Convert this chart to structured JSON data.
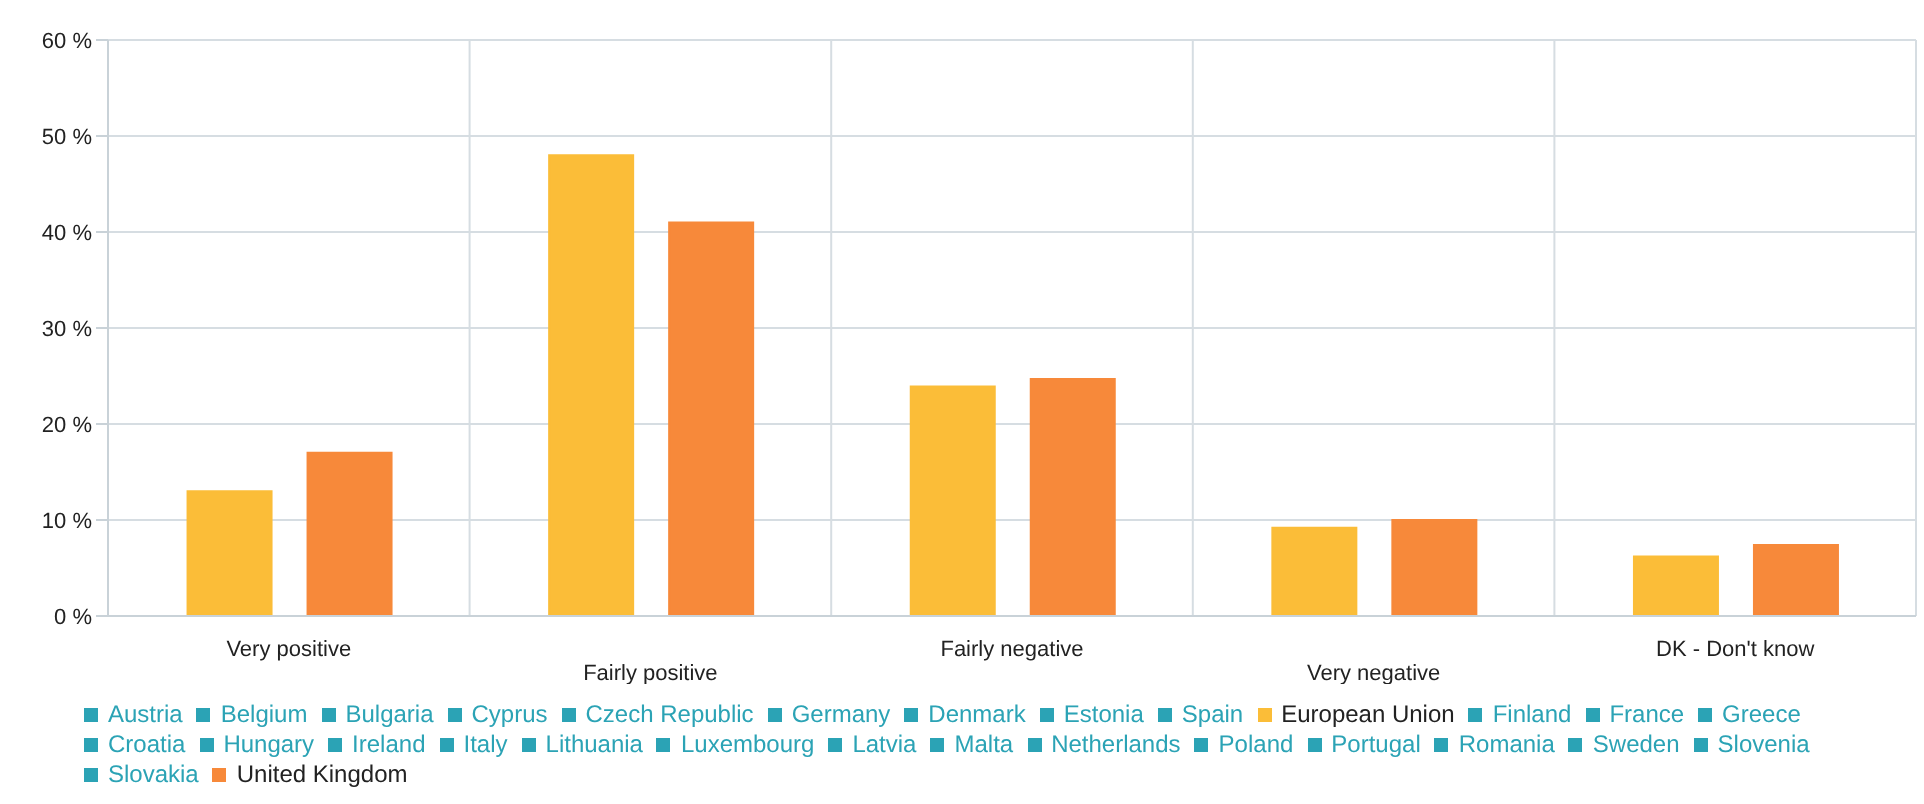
{
  "chart_data": {
    "type": "bar",
    "categories": [
      "Very positive",
      "Fairly positive",
      "Fairly negative",
      "Very negative",
      "DK - Don't know"
    ],
    "ylim": [
      0,
      60
    ],
    "yticks": [
      {
        "value": 0,
        "label": "0 %"
      },
      {
        "value": 10,
        "label": "10 %"
      },
      {
        "value": 20,
        "label": "20 %"
      },
      {
        "value": 30,
        "label": "30 %"
      },
      {
        "value": 40,
        "label": "40 %"
      },
      {
        "value": 50,
        "label": "50 %"
      },
      {
        "value": 60,
        "label": "60 %"
      }
    ],
    "grid": true,
    "legend": "bottom",
    "series": [
      {
        "name": "Austria",
        "color": "#2ba3b5",
        "values": [
          null,
          null,
          null,
          null,
          null
        ]
      },
      {
        "name": "Belgium",
        "color": "#2ba3b5",
        "values": [
          null,
          null,
          null,
          null,
          null
        ]
      },
      {
        "name": "Bulgaria",
        "color": "#2ba3b5",
        "values": [
          null,
          null,
          null,
          null,
          null
        ]
      },
      {
        "name": "Cyprus",
        "color": "#2ba3b5",
        "values": [
          null,
          null,
          null,
          null,
          null
        ]
      },
      {
        "name": "Czech Republic",
        "color": "#2ba3b5",
        "values": [
          null,
          null,
          null,
          null,
          null
        ]
      },
      {
        "name": "Germany",
        "color": "#2ba3b5",
        "values": [
          null,
          null,
          null,
          null,
          null
        ]
      },
      {
        "name": "Denmark",
        "color": "#2ba3b5",
        "values": [
          null,
          null,
          null,
          null,
          null
        ]
      },
      {
        "name": "Estonia",
        "color": "#2ba3b5",
        "values": [
          null,
          null,
          null,
          null,
          null
        ]
      },
      {
        "name": "Spain",
        "color": "#2ba3b5",
        "values": [
          null,
          null,
          null,
          null,
          null
        ]
      },
      {
        "name": "European Union",
        "color": "#fbbd38",
        "values": [
          13,
          48,
          23.9,
          9.2,
          6.2
        ]
      },
      {
        "name": "Finland",
        "color": "#2ba3b5",
        "values": [
          null,
          null,
          null,
          null,
          null
        ]
      },
      {
        "name": "France",
        "color": "#2ba3b5",
        "values": [
          null,
          null,
          null,
          null,
          null
        ]
      },
      {
        "name": "Greece",
        "color": "#2ba3b5",
        "values": [
          null,
          null,
          null,
          null,
          null
        ]
      },
      {
        "name": "Croatia",
        "color": "#2ba3b5",
        "values": [
          null,
          null,
          null,
          null,
          null
        ]
      },
      {
        "name": "Hungary",
        "color": "#2ba3b5",
        "values": [
          null,
          null,
          null,
          null,
          null
        ]
      },
      {
        "name": "Ireland",
        "color": "#2ba3b5",
        "values": [
          null,
          null,
          null,
          null,
          null
        ]
      },
      {
        "name": "Italy",
        "color": "#2ba3b5",
        "values": [
          null,
          null,
          null,
          null,
          null
        ]
      },
      {
        "name": "Lithuania",
        "color": "#2ba3b5",
        "values": [
          null,
          null,
          null,
          null,
          null
        ]
      },
      {
        "name": "Luxembourg",
        "color": "#2ba3b5",
        "values": [
          null,
          null,
          null,
          null,
          null
        ]
      },
      {
        "name": "Latvia",
        "color": "#2ba3b5",
        "values": [
          null,
          null,
          null,
          null,
          null
        ]
      },
      {
        "name": "Malta",
        "color": "#2ba3b5",
        "values": [
          null,
          null,
          null,
          null,
          null
        ]
      },
      {
        "name": "Netherlands",
        "color": "#2ba3b5",
        "values": [
          null,
          null,
          null,
          null,
          null
        ]
      },
      {
        "name": "Poland",
        "color": "#2ba3b5",
        "values": [
          null,
          null,
          null,
          null,
          null
        ]
      },
      {
        "name": "Portugal",
        "color": "#2ba3b5",
        "values": [
          null,
          null,
          null,
          null,
          null
        ]
      },
      {
        "name": "Romania",
        "color": "#2ba3b5",
        "values": [
          null,
          null,
          null,
          null,
          null
        ]
      },
      {
        "name": "Sweden",
        "color": "#2ba3b5",
        "values": [
          null,
          null,
          null,
          null,
          null
        ]
      },
      {
        "name": "Slovenia",
        "color": "#2ba3b5",
        "values": [
          null,
          null,
          null,
          null,
          null
        ]
      },
      {
        "name": "Slovakia",
        "color": "#2ba3b5",
        "values": [
          null,
          null,
          null,
          null,
          null
        ]
      },
      {
        "name": "United Kingdom",
        "color": "#f7893a",
        "values": [
          17,
          41,
          24.7,
          10,
          7.4
        ]
      }
    ]
  }
}
